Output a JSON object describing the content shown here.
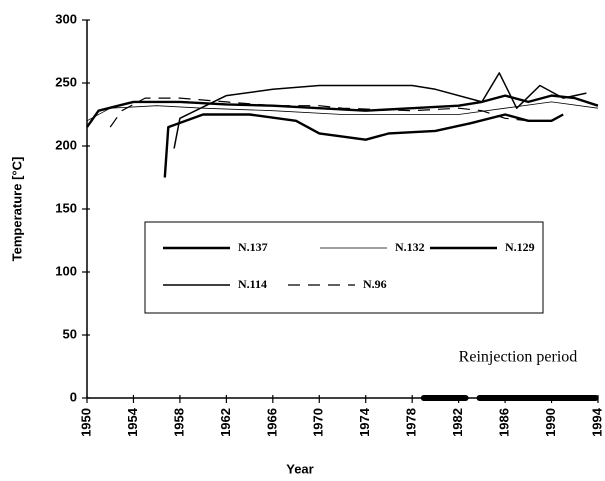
{
  "chart_data": {
    "type": "line",
    "xlabel": "Year",
    "ylabel": "Temperature [°C]",
    "xlim": [
      1950,
      1994
    ],
    "xticks": [
      1950,
      1954,
      1958,
      1962,
      1966,
      1970,
      1974,
      1978,
      1982,
      1986,
      1990,
      1994
    ],
    "ylim": [
      0,
      300
    ],
    "yticks": [
      0,
      50,
      100,
      150,
      200,
      250,
      300
    ],
    "annotation": "Reinjection period",
    "reinjection_periods": [
      [
        1979,
        1982.6
      ],
      [
        1983.8,
        1993.8
      ]
    ],
    "series": [
      {
        "name": "N.137",
        "color": "#000",
        "line_width": 2.4,
        "dashed": false,
        "x": [
          1950,
          1951,
          1954,
          1958,
          1962,
          1966,
          1970,
          1974,
          1978,
          1982,
          1984,
          1986,
          1988,
          1990,
          1992,
          1994
        ],
        "values": [
          215,
          228,
          235,
          235,
          233,
          232,
          230,
          228,
          230,
          232,
          235,
          240,
          235,
          240,
          238,
          232
        ]
      },
      {
        "name": "N.132",
        "color": "#000",
        "line_width": 0.8,
        "dashed": false,
        "x": [
          1950,
          1952,
          1956,
          1960,
          1966,
          1972,
          1978,
          1982,
          1986,
          1990,
          1994
        ],
        "values": [
          220,
          230,
          232,
          230,
          228,
          225,
          225,
          225,
          230,
          235,
          230
        ]
      },
      {
        "name": "N.129",
        "color": "#000",
        "line_width": 2.4,
        "dashed": false,
        "x": [
          1956.7,
          1957,
          1960,
          1964,
          1968,
          1970,
          1974,
          1976,
          1980,
          1983,
          1986,
          1988,
          1990,
          1991
        ],
        "values": [
          175,
          215,
          225,
          225,
          220,
          210,
          205,
          210,
          212,
          218,
          225,
          220,
          220,
          225
        ]
      },
      {
        "name": "N.114",
        "color": "#000",
        "line_width": 1.5,
        "dashed": false,
        "x": [
          1957.5,
          1958,
          1962,
          1966,
          1970,
          1974,
          1978,
          1980,
          1984,
          1985.5,
          1987,
          1989,
          1991,
          1993
        ],
        "values": [
          198,
          222,
          240,
          245,
          248,
          248,
          248,
          245,
          235,
          258,
          230,
          248,
          238,
          242
        ]
      },
      {
        "name": "N.96",
        "color": "#000",
        "line_width": 1.2,
        "dashed": true,
        "x": [
          1952,
          1953,
          1955,
          1958,
          1962,
          1966,
          1970,
          1972,
          1978,
          1982,
          1984,
          1986,
          1988
        ],
        "values": [
          215,
          228,
          238,
          238,
          235,
          232,
          232,
          230,
          228,
          230,
          228,
          222,
          220
        ]
      }
    ]
  }
}
